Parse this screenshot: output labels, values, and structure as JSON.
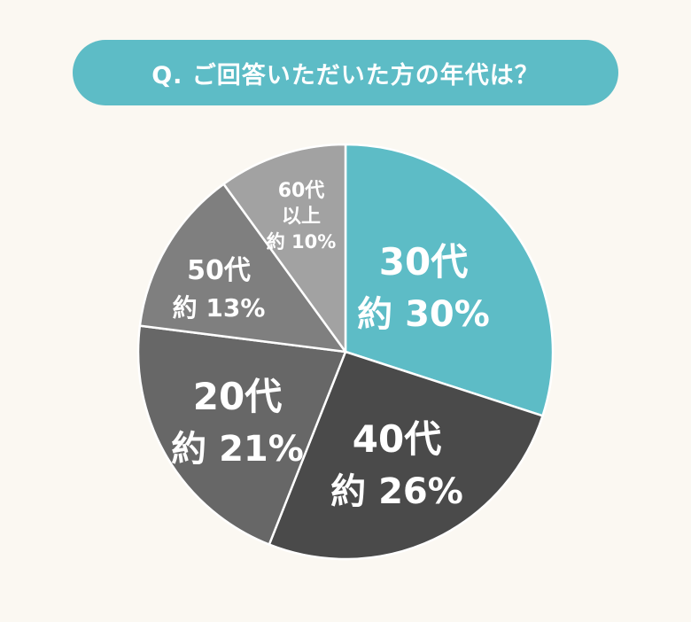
{
  "title": "Q. ご回答いただいた方の年代は？",
  "chart_data": {
    "type": "pie",
    "title": "Q. ご回答いただいた方の年代は？",
    "start_angle_deg": 0,
    "direction": "clockwise",
    "slices": [
      {
        "label": "30代",
        "value": 30,
        "value_label": "約 30%",
        "color": "#5dbcc6"
      },
      {
        "label": "40代",
        "value": 26,
        "value_label": "約 26%",
        "color": "#4a4a4a"
      },
      {
        "label": "20代",
        "value": 21,
        "value_label": "約 21%",
        "color": "#676767"
      },
      {
        "label": "50代",
        "value": 13,
        "value_label": "約 13%",
        "color": "#7f7f7f"
      },
      {
        "label": "60代以上",
        "value": 10,
        "value_label": "約 10%",
        "color": "#a2a2a2"
      }
    ],
    "label_lines": {
      "60代以上": [
        "60代",
        "以上",
        "約 10%"
      ]
    }
  }
}
